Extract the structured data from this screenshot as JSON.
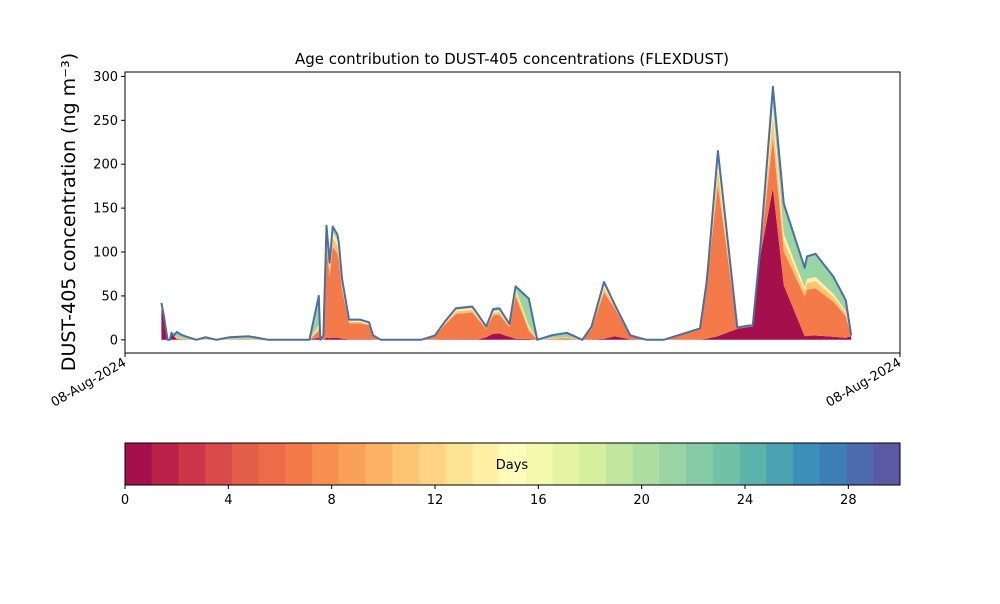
{
  "chart_data": {
    "type": "area",
    "title": "Age contribution to DUST-405 concentrations (FLEXDUST)",
    "ylabel": "DUST-405 concentration (ng m⁻³)",
    "xlabel": "",
    "ylim": [
      -15,
      305
    ],
    "yticks": [
      0,
      50,
      100,
      150,
      200,
      250,
      300
    ],
    "xticks": [
      "08-Aug-2024",
      "08-Aug-2024"
    ],
    "grid": false,
    "total_series": {
      "name": "",
      "color": "#4a6fa5",
      "x": [
        0.047,
        0.05,
        0.055,
        0.058,
        0.06,
        0.063,
        0.067,
        0.072,
        0.078,
        0.092,
        0.104,
        0.118,
        0.135,
        0.16,
        0.185,
        0.212,
        0.238,
        0.25,
        0.252,
        0.256,
        0.26,
        0.264,
        0.268,
        0.274,
        0.276,
        0.28,
        0.289,
        0.303,
        0.315,
        0.32,
        0.33,
        0.35,
        0.382,
        0.4,
        0.412,
        0.427,
        0.448,
        0.456,
        0.466,
        0.475,
        0.483,
        0.496,
        0.504,
        0.521,
        0.532,
        0.55,
        0.57,
        0.59,
        0.602,
        0.618,
        0.632,
        0.652,
        0.673,
        0.695,
        0.742,
        0.75,
        0.752,
        0.765,
        0.79,
        0.81,
        0.82,
        0.836,
        0.85,
        0.877,
        0.88,
        0.891,
        0.914,
        0.93,
        0.937
      ],
      "values": [
        42,
        28,
        0,
        0,
        8,
        5,
        9,
        6,
        4,
        0,
        3,
        0,
        3,
        4,
        0,
        0,
        0,
        50,
        0,
        5,
        130,
        88,
        129,
        120,
        110,
        70,
        23,
        23,
        20,
        5,
        0,
        0,
        0,
        5,
        20,
        36,
        38,
        28,
        15,
        35,
        36,
        18,
        61,
        47,
        0,
        5,
        8,
        0,
        15,
        66,
        40,
        5,
        0,
        0,
        13,
        63,
        80,
        215,
        14,
        17,
        108,
        288,
        155,
        82,
        95,
        98,
        72,
        45,
        5
      ],
      "y": [
        42,
        28,
        0,
        0,
        8,
        5,
        9,
        6,
        4,
        0,
        3,
        0,
        3,
        4,
        0,
        0,
        0,
        50,
        0,
        5,
        130,
        88,
        129,
        120,
        110,
        70,
        23,
        23,
        20,
        5,
        0,
        0,
        0,
        5,
        20,
        36,
        38,
        28,
        15,
        35,
        36,
        18,
        61,
        47,
        0,
        5,
        8,
        0,
        15,
        66,
        40,
        5,
        0,
        0,
        13,
        63,
        80,
        215,
        14,
        17,
        108,
        288,
        155,
        82,
        95,
        98,
        72,
        45,
        5
      ]
    },
    "colorbar": {
      "label": "Days",
      "ticks": [
        0,
        4,
        8,
        12,
        16,
        20,
        24,
        28
      ],
      "range": [
        0,
        30
      ],
      "colors": [
        "#a50f4b",
        "#bb2148",
        "#cc3448",
        "#da4a4a",
        "#e45e49",
        "#ef6b47",
        "#f47b49",
        "#f78f51",
        "#f9a159",
        "#fcb264",
        "#fdc474",
        "#fed484",
        "#fee294",
        "#fff0a5",
        "#fefcbb",
        "#f4faad",
        "#e6f4a1",
        "#d6ef9c",
        "#c2e69e",
        "#acdda1",
        "#99d4a4",
        "#84cba6",
        "#6fc2a6",
        "#5bb3aa",
        "#4aa2b2",
        "#3a90b8",
        "#3c7fb6",
        "#4c6caf",
        "#5b59a4"
      ]
    }
  }
}
